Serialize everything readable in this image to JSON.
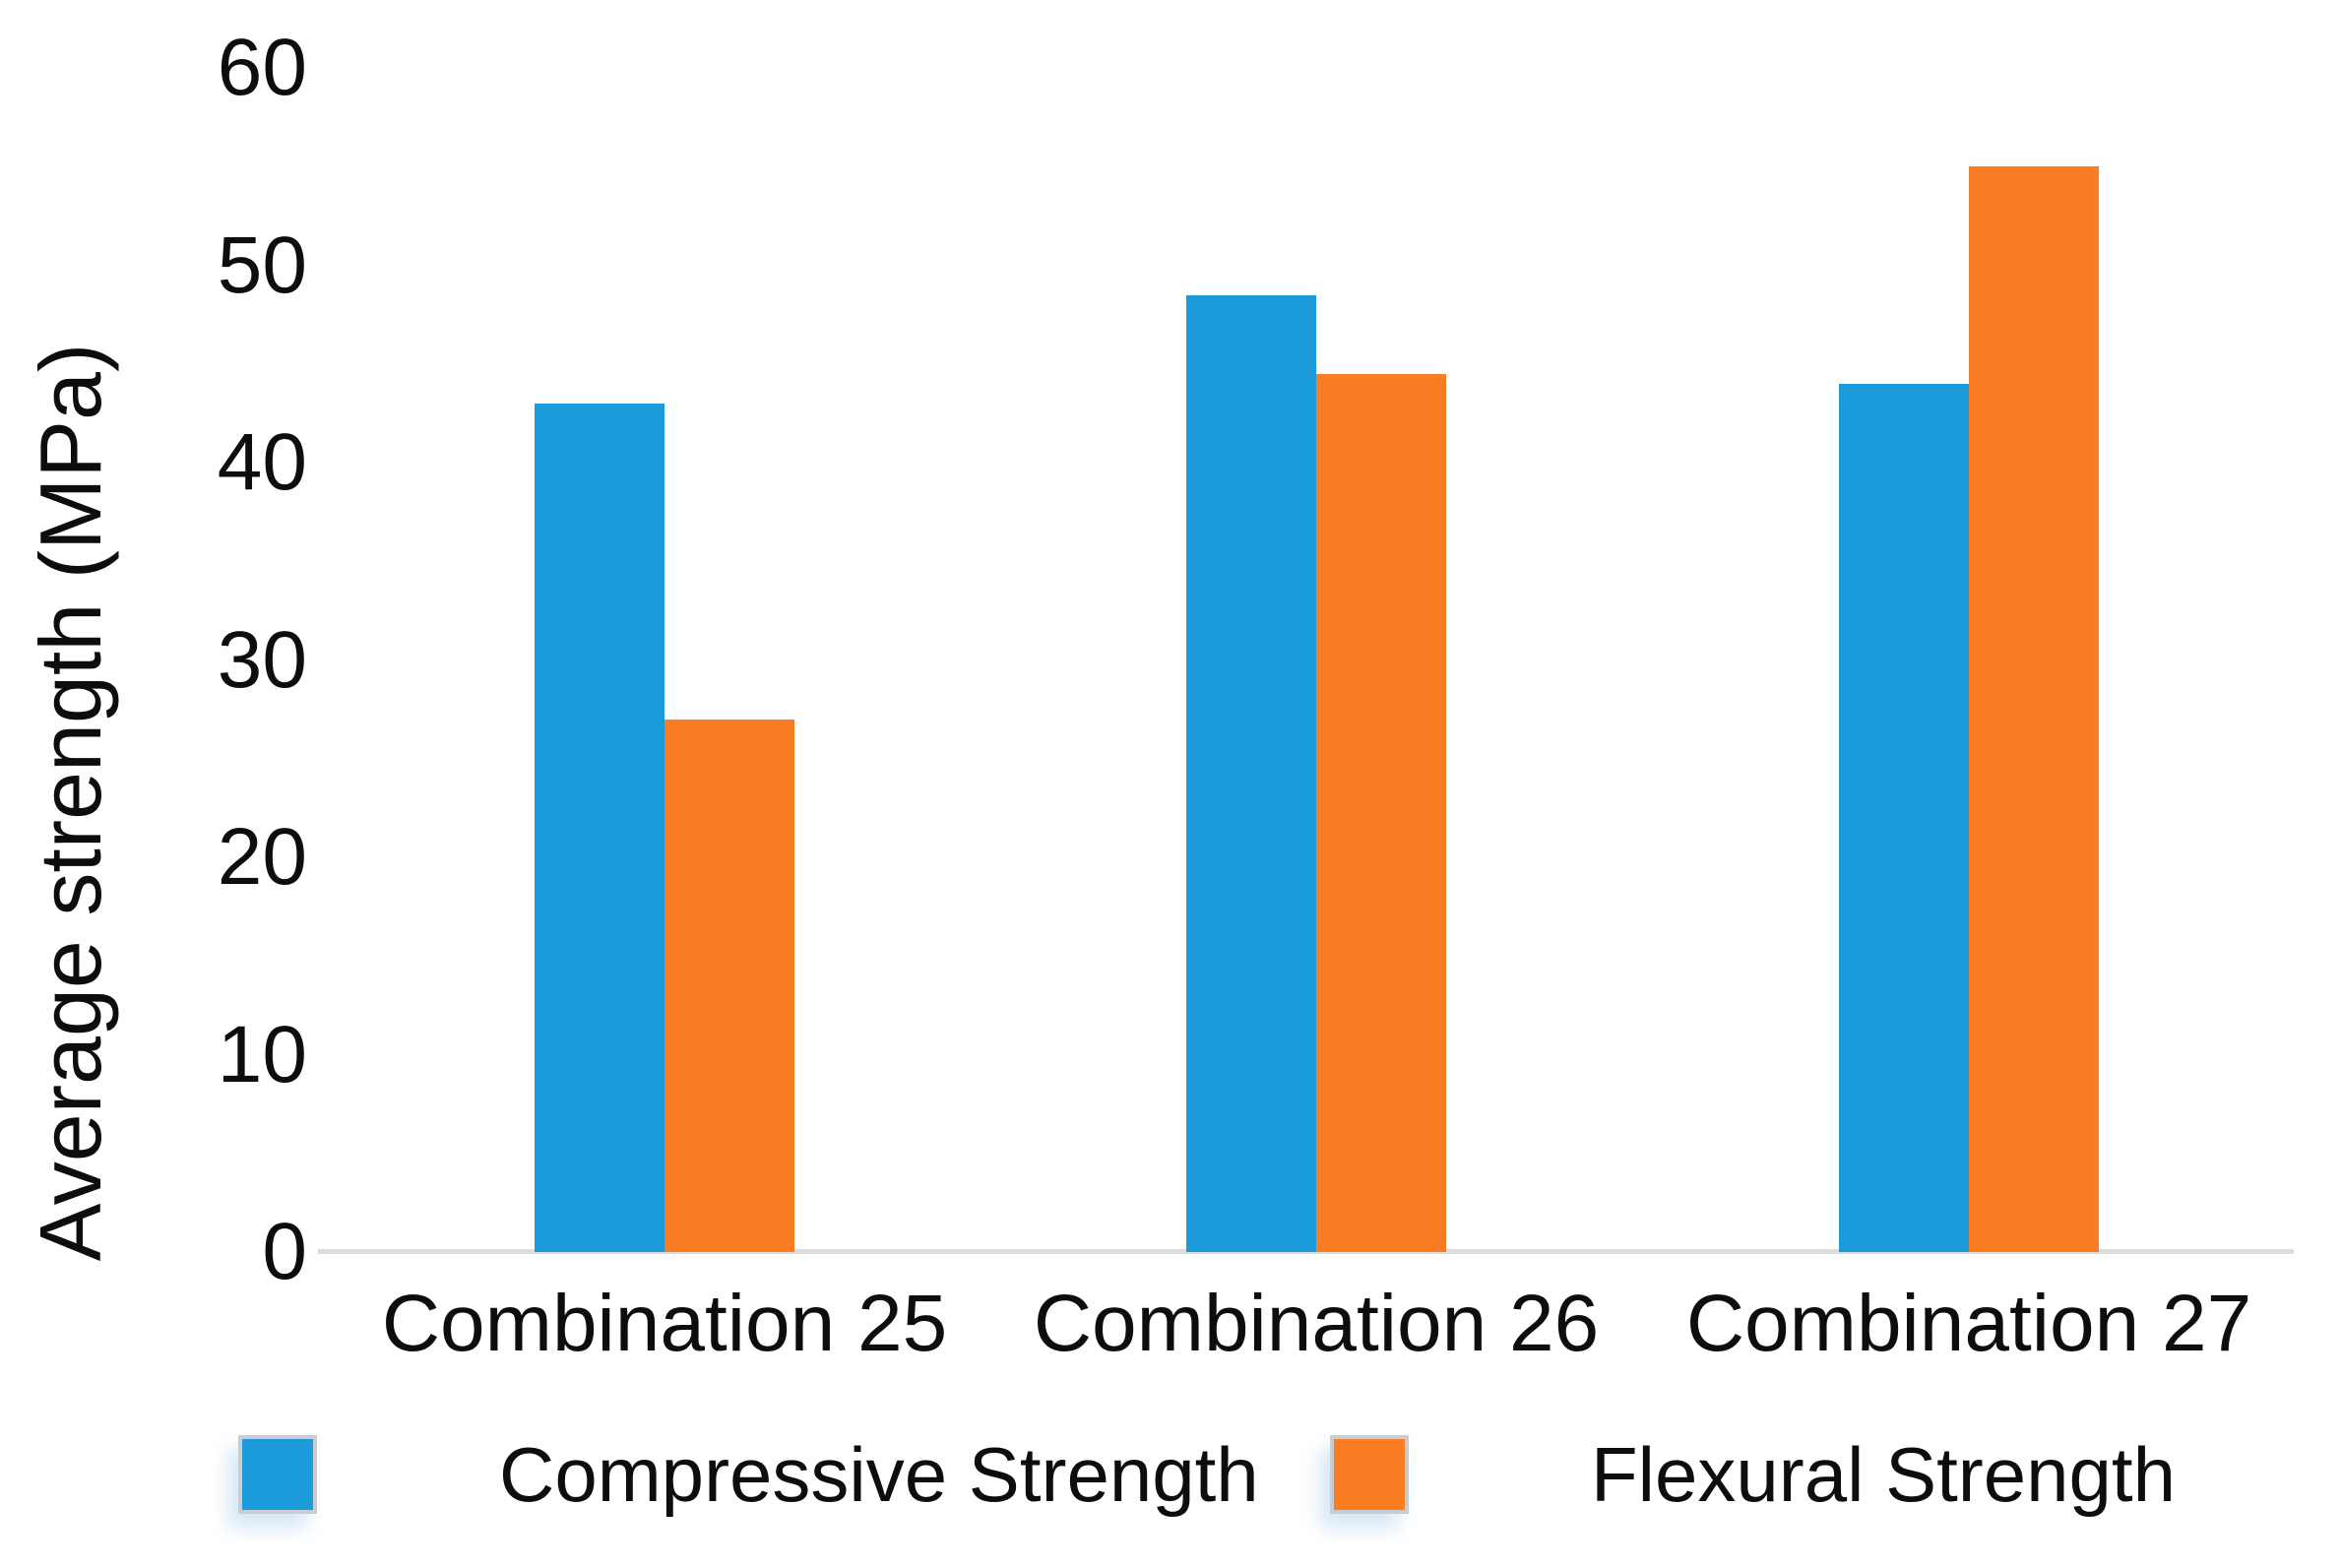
{
  "chart_data": {
    "type": "bar",
    "title": "",
    "categories": [
      "Combination 25",
      "Combination 26",
      "Combination 27"
    ],
    "series": [
      {
        "name": "Compressive Strength",
        "color": "#1B9BD9",
        "values": [
          43,
          48.5,
          44
        ]
      },
      {
        "name": "Flexural Strength",
        "color": "#FB7D23",
        "values": [
          27,
          44.5,
          55
        ]
      }
    ],
    "xlabel": "",
    "ylabel": "Average strength (MPa)",
    "ylim": [
      0,
      60
    ],
    "yticks": [
      0,
      10,
      20,
      30,
      40,
      50,
      60
    ],
    "grid": false,
    "legend_position": "bottom",
    "legend": [
      "Compressive Strength",
      "Flexural Strength"
    ]
  },
  "colors": {
    "background": "#FFFFFF",
    "axis_line": "#DCDCDC",
    "text": "#0D0D0D"
  }
}
